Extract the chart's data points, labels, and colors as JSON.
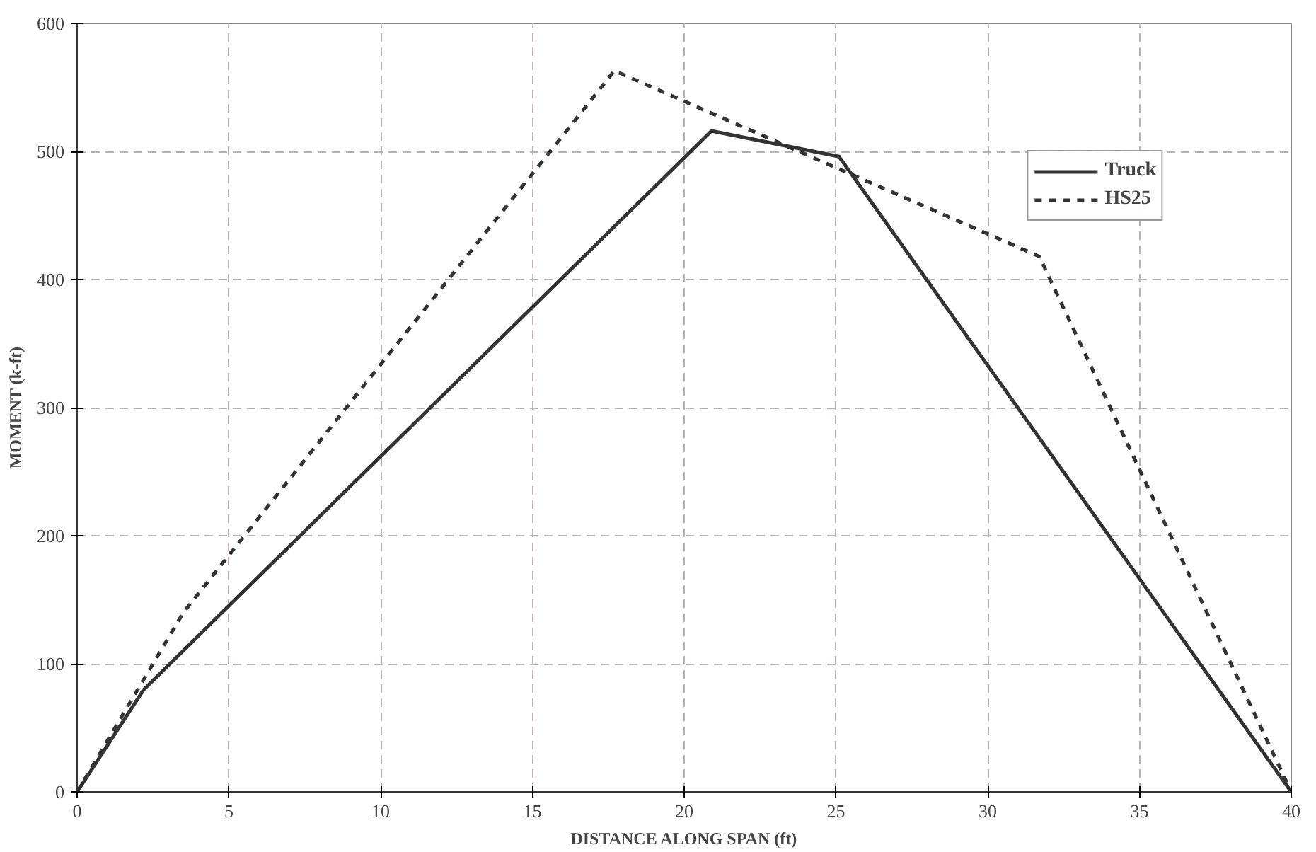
{
  "chart_data": {
    "type": "line",
    "xlabel": "DISTANCE ALONG SPAN (ft)",
    "ylabel": "MOMENT (k-ft)",
    "xlim": [
      0,
      40
    ],
    "xticks": [
      0,
      5,
      10,
      15,
      20,
      25,
      30,
      35,
      40
    ],
    "ylim": [
      0,
      600
    ],
    "yticks": [
      0,
      100,
      200,
      300,
      400,
      500,
      600
    ],
    "grid": true,
    "legend": "top right",
    "marker": "none",
    "series": [
      {
        "name": "Truck",
        "color": "#333333",
        "line_style": "solid",
        "x": [
          0,
          2.2,
          20.9,
          25.1,
          40
        ],
        "values": [
          0,
          80,
          516,
          496,
          0
        ]
      },
      {
        "name": "HS25",
        "color": "#333333",
        "line_style": "dashed",
        "x": [
          0,
          3.5,
          17.7,
          31.7,
          40
        ],
        "values": [
          0,
          140,
          563,
          418,
          0
        ]
      }
    ]
  }
}
